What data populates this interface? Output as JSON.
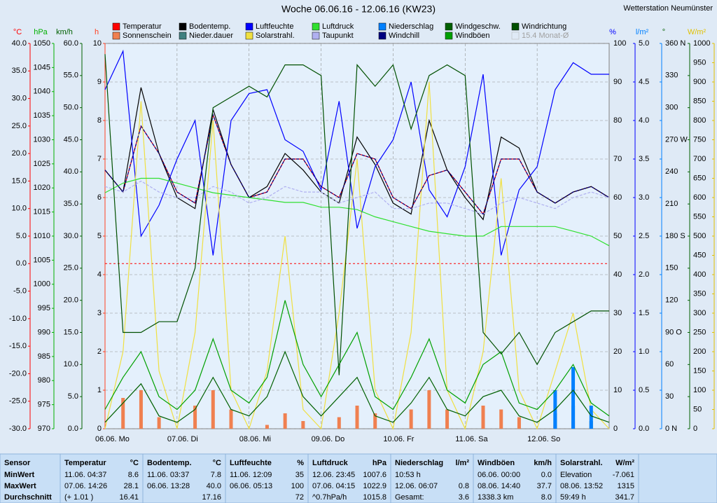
{
  "chart_data": {
    "type": "line",
    "title": "Woche 06.06.16 - 12.06.16 (KW23)",
    "station": "Wetterstation Neumünster",
    "xlim": [
      0,
      168
    ],
    "xticks": [
      {
        "value": 0,
        "label": "06.06.  Mo"
      },
      {
        "value": 24,
        "label": "07.06.  Di"
      },
      {
        "value": 48,
        "label": "08.06.  Mi"
      },
      {
        "value": 72,
        "label": "09.06.  Do"
      },
      {
        "value": 96,
        "label": "10.06.  Fr"
      },
      {
        "value": 120,
        "label": "11.06.  Sa"
      },
      {
        "value": 144,
        "label": "12.06.  So"
      }
    ],
    "x": [
      0,
      6,
      12,
      18,
      24,
      30,
      36,
      42,
      48,
      54,
      60,
      66,
      72,
      78,
      84,
      90,
      96,
      102,
      108,
      114,
      120,
      126,
      132,
      138,
      144,
      150,
      156,
      162,
      168
    ],
    "grid_axis": 3,
    "reference_line": {
      "axis": 0,
      "value": 0,
      "color": "#ff0000"
    },
    "axes": [
      {
        "label": "°C",
        "side": "left",
        "color": "#ff0000",
        "lim": [
          -30,
          40
        ],
        "ticks": [
          {
            "value": -30,
            "label": "-30.0"
          },
          {
            "value": -25,
            "label": "-25.0"
          },
          {
            "value": -20,
            "label": "-20.0"
          },
          {
            "value": -15,
            "label": "-15.0"
          },
          {
            "value": -10,
            "label": "-10.0"
          },
          {
            "value": -5,
            "label": "-5.0"
          },
          {
            "value": 0,
            "label": "0.0"
          },
          {
            "value": 5,
            "label": "5.0"
          },
          {
            "value": 10,
            "label": "10.0"
          },
          {
            "value": 15,
            "label": "15.0"
          },
          {
            "value": 20,
            "label": "20.0"
          },
          {
            "value": 25,
            "label": "25.0"
          },
          {
            "value": 30,
            "label": "30.0"
          },
          {
            "value": 35,
            "label": "35.0"
          },
          {
            "value": 40,
            "label": "40.0"
          }
        ]
      },
      {
        "label": "hPa",
        "side": "left",
        "color": "#00b000",
        "lim": [
          970,
          1050
        ],
        "ticks": [
          970,
          975,
          980,
          985,
          990,
          995,
          1000,
          1005,
          1010,
          1015,
          1020,
          1025,
          1030,
          1035,
          1040,
          1045,
          1050
        ]
      },
      {
        "label": "km/h",
        "side": "left",
        "color": "#006000",
        "lim": [
          0,
          60
        ],
        "ticks": [
          {
            "value": 0,
            "label": "0.0"
          },
          {
            "value": 5,
            "label": "5.0"
          },
          {
            "value": 10,
            "label": "10.0"
          },
          {
            "value": 15,
            "label": "15.0"
          },
          {
            "value": 20,
            "label": "20.0"
          },
          {
            "value": 25,
            "label": "25.0"
          },
          {
            "value": 30,
            "label": "30.0"
          },
          {
            "value": 35,
            "label": "35.0"
          },
          {
            "value": 40,
            "label": "40.0"
          },
          {
            "value": 45,
            "label": "45.0"
          },
          {
            "value": 50,
            "label": "50.0"
          },
          {
            "value": 55,
            "label": "55.0"
          },
          {
            "value": 60,
            "label": "60.0"
          }
        ]
      },
      {
        "label": "h",
        "side": "left",
        "color": "#ff4020",
        "lim": [
          0,
          10
        ],
        "ticks": [
          0,
          1,
          2,
          3,
          4,
          5,
          6,
          7,
          8,
          9,
          10
        ]
      },
      {
        "label": "%",
        "side": "right",
        "color": "#0000ff",
        "lim": [
          0,
          100
        ],
        "ticks": [
          0,
          10,
          20,
          30,
          40,
          50,
          60,
          70,
          80,
          90,
          100
        ]
      },
      {
        "label": "l/m²",
        "side": "right",
        "color": "#0080ff",
        "lim": [
          0,
          5
        ],
        "ticks": [
          {
            "value": 0,
            "label": "0.0"
          },
          0.5,
          {
            "value": 1,
            "label": "1.0"
          },
          1.5,
          {
            "value": 2,
            "label": "2.0"
          },
          2.5,
          {
            "value": 3,
            "label": "3.0"
          },
          3.5,
          {
            "value": 4,
            "label": "4.0"
          },
          4.5,
          {
            "value": 5,
            "label": "5.0"
          }
        ]
      },
      {
        "label": "°",
        "side": "right",
        "color": "#006000",
        "lim": [
          0,
          360
        ],
        "ticks": [
          {
            "value": 0,
            "label": "0  N"
          },
          30,
          60,
          {
            "value": 90,
            "label": "90  O"
          },
          120,
          150,
          {
            "value": 180,
            "label": "180 S"
          },
          210,
          240,
          {
            "value": 270,
            "label": "270 W"
          },
          300,
          330,
          {
            "value": 360,
            "label": "360 N"
          }
        ]
      },
      {
        "label": "W/m²",
        "side": "right",
        "color": "#e0c000",
        "lim": [
          0,
          1000
        ],
        "ticks": [
          0,
          50,
          100,
          150,
          200,
          250,
          300,
          350,
          400,
          450,
          500,
          550,
          600,
          650,
          700,
          750,
          800,
          850,
          900,
          950,
          1000
        ]
      }
    ],
    "series": [
      {
        "name": "Temperatur",
        "color": "#ff0000",
        "axis": 0,
        "style": "line",
        "values": [
          17,
          13,
          25,
          20,
          13,
          11,
          27,
          18,
          12,
          13,
          19,
          19,
          14,
          12,
          20,
          19,
          12,
          10,
          16,
          17,
          13,
          9,
          19,
          19,
          13,
          11,
          13,
          14,
          12
        ]
      },
      {
        "name": "Sonnenschein",
        "color": "#f08050",
        "axis": 3,
        "style": "bar",
        "values": [
          0,
          0.8,
          1,
          0.3,
          0,
          0.6,
          1,
          0.5,
          0,
          0.1,
          0.4,
          0.2,
          0,
          0.3,
          0.6,
          0.4,
          0,
          0.5,
          1,
          0.5,
          0,
          0.6,
          0.5,
          0.3,
          0,
          0.1,
          0.2,
          0,
          0
        ]
      },
      {
        "name": "Bodentemp.",
        "color": "#000000",
        "axis": 0,
        "style": "line",
        "values": [
          17,
          13,
          32,
          20,
          12,
          10,
          28,
          18,
          12,
          14,
          20,
          17,
          13,
          11,
          23,
          18,
          11,
          9,
          26,
          17,
          12,
          8,
          23,
          21,
          13,
          11,
          13,
          14,
          12
        ]
      },
      {
        "name": "Nieder.dauer",
        "color": "#408080",
        "axis": 3,
        "style": "bar",
        "values": [
          0,
          0,
          0,
          0,
          0,
          0,
          0,
          0,
          0,
          0,
          0,
          0,
          0,
          0,
          0,
          0,
          0,
          0,
          0,
          0,
          0,
          0,
          0,
          0,
          0,
          0.4,
          0.6,
          0.2,
          0
        ]
      },
      {
        "name": "Luftfeuchte",
        "color": "#0000ff",
        "axis": 4,
        "style": "line",
        "values": [
          88,
          98,
          50,
          58,
          70,
          80,
          45,
          80,
          87,
          88,
          75,
          72,
          62,
          85,
          52,
          68,
          75,
          90,
          62,
          55,
          68,
          92,
          45,
          62,
          68,
          88,
          95,
          92,
          92
        ]
      },
      {
        "name": "Solarstrahl.",
        "color": "#f0e040",
        "axis": 7,
        "style": "line",
        "values": [
          0,
          200,
          850,
          150,
          0,
          250,
          800,
          100,
          0,
          150,
          500,
          50,
          0,
          300,
          700,
          100,
          0,
          250,
          900,
          100,
          0,
          200,
          650,
          100,
          0,
          150,
          300,
          50,
          0
        ]
      },
      {
        "name": "Luftdruck",
        "color": "#30e030",
        "axis": 1,
        "style": "line",
        "values": [
          1019,
          1021,
          1022,
          1022,
          1021,
          1020,
          1019,
          1018.5,
          1018,
          1017.5,
          1017,
          1017,
          1016,
          1016,
          1015.5,
          1014,
          1013,
          1012,
          1011,
          1010.5,
          1010,
          1010,
          1012,
          1012,
          1012,
          1012,
          1011,
          1010,
          1008
        ]
      },
      {
        "name": "Taupunkt",
        "color": "#b0b0f0",
        "axis": 0,
        "style": "dashed",
        "values": [
          14,
          13,
          15,
          13,
          12,
          12,
          14,
          13,
          11,
          12,
          14,
          13,
          13,
          11,
          12,
          13,
          10,
          10,
          11,
          11,
          10,
          9,
          11,
          12,
          11,
          10,
          12,
          13,
          12
        ]
      },
      {
        "name": "Niederschlag",
        "color": "#0080ff",
        "axis": 5,
        "style": "bar",
        "values": [
          0,
          0,
          0,
          0,
          0,
          0,
          0,
          0,
          0,
          0,
          0,
          0,
          0,
          0,
          0,
          0,
          0,
          0,
          0,
          0,
          0,
          0,
          0,
          0,
          0,
          0.5,
          0.8,
          0.3,
          0
        ]
      },
      {
        "name": "Windchill",
        "color": "#000080",
        "axis": 0,
        "style": "dashed",
        "values": [
          17,
          13,
          25,
          20,
          13,
          11,
          27,
          18,
          12,
          13,
          19,
          19,
          14,
          12,
          20,
          19,
          12,
          10,
          16,
          17,
          13,
          9,
          19,
          19,
          13,
          11,
          13,
          14,
          12
        ]
      },
      {
        "name": "Windgeschw.",
        "color": "#006000",
        "axis": 2,
        "style": "line",
        "values": [
          1,
          4,
          7,
          2,
          1,
          3,
          8,
          3,
          2,
          5,
          12,
          5,
          2,
          5,
          8,
          2,
          1,
          4,
          8,
          3,
          2,
          5,
          6,
          2,
          1,
          3,
          6,
          2,
          1
        ]
      },
      {
        "name": "Windböen",
        "color": "#00a000",
        "axis": 2,
        "style": "line",
        "values": [
          3,
          8,
          12,
          5,
          3,
          6,
          14,
          6,
          4,
          8,
          20,
          10,
          5,
          10,
          15,
          5,
          3,
          8,
          14,
          6,
          4,
          10,
          12,
          4,
          3,
          6,
          10,
          4,
          2
        ]
      },
      {
        "name": "Windrichtung",
        "color": "#005000",
        "axis": 6,
        "style": "line",
        "values": [
          350,
          90,
          90,
          100,
          100,
          150,
          300,
          310,
          320,
          310,
          340,
          340,
          330,
          50,
          340,
          320,
          340,
          280,
          330,
          340,
          330,
          90,
          70,
          90,
          60,
          90,
          100,
          110,
          110
        ]
      }
    ],
    "inactive_legend": "15.4 Monat-Ø"
  },
  "table": {
    "row_labels": [
      "Sensor",
      "MinWert",
      "MaxWert",
      "Durchschnitt"
    ],
    "columns": [
      {
        "name": "Temperatur",
        "unit": "°C",
        "rows": [
          {
            "text": "11.06.  04:37",
            "value": "8.6"
          },
          {
            "text": "07.06.  14:26",
            "value": "28.1"
          },
          {
            "text": "(+ 1.01 )",
            "value": "16.41"
          }
        ]
      },
      {
        "name": "Bodentemp.",
        "unit": "°C",
        "rows": [
          {
            "text": "11.06.  03:37",
            "value": "7.8"
          },
          {
            "text": "06.06.  13:28",
            "value": "40.0"
          },
          {
            "value": "17.16"
          }
        ]
      },
      {
        "name": "Luftfeuchte",
        "unit": "%",
        "rows": [
          {
            "text": "11.06.  12:09",
            "value": "35"
          },
          {
            "text": "06.06.  05:13",
            "value": "100"
          },
          {
            "value": "72"
          }
        ]
      },
      {
        "name": "Luftdruck",
        "unit": "hPa",
        "rows": [
          {
            "text": "12.06.  23:45",
            "value": "1007.6"
          },
          {
            "text": "07.06.  04:15",
            "value": "1022.9"
          },
          {
            "text": "^0.7hPa/h",
            "value": "1015.8"
          }
        ]
      },
      {
        "name": "Niederschlag",
        "unit": "l/m²",
        "rows": [
          {
            "text": "10:53 h"
          },
          {
            "text": "12.06.  06:07",
            "value": "0.8"
          },
          {
            "text": "Gesamt:",
            "value": "3.6"
          }
        ]
      },
      {
        "name": "Windböen",
        "unit": "km/h",
        "rows": [
          {
            "text": "06.06.  00:00",
            "value": "0.0"
          },
          {
            "text": "08.06.  14:40",
            "value": "37.7"
          },
          {
            "text": "1338.3 km",
            "value": "8.0"
          }
        ]
      },
      {
        "name": "Solarstrahl.",
        "unit": "W/m²",
        "rows": [
          {
            "text": "Elevation",
            "value": "-7.061"
          },
          {
            "text": "08.06.  13:52",
            "value": "1315"
          },
          {
            "text": "59:49 h",
            "value": "341.7"
          }
        ]
      }
    ]
  }
}
